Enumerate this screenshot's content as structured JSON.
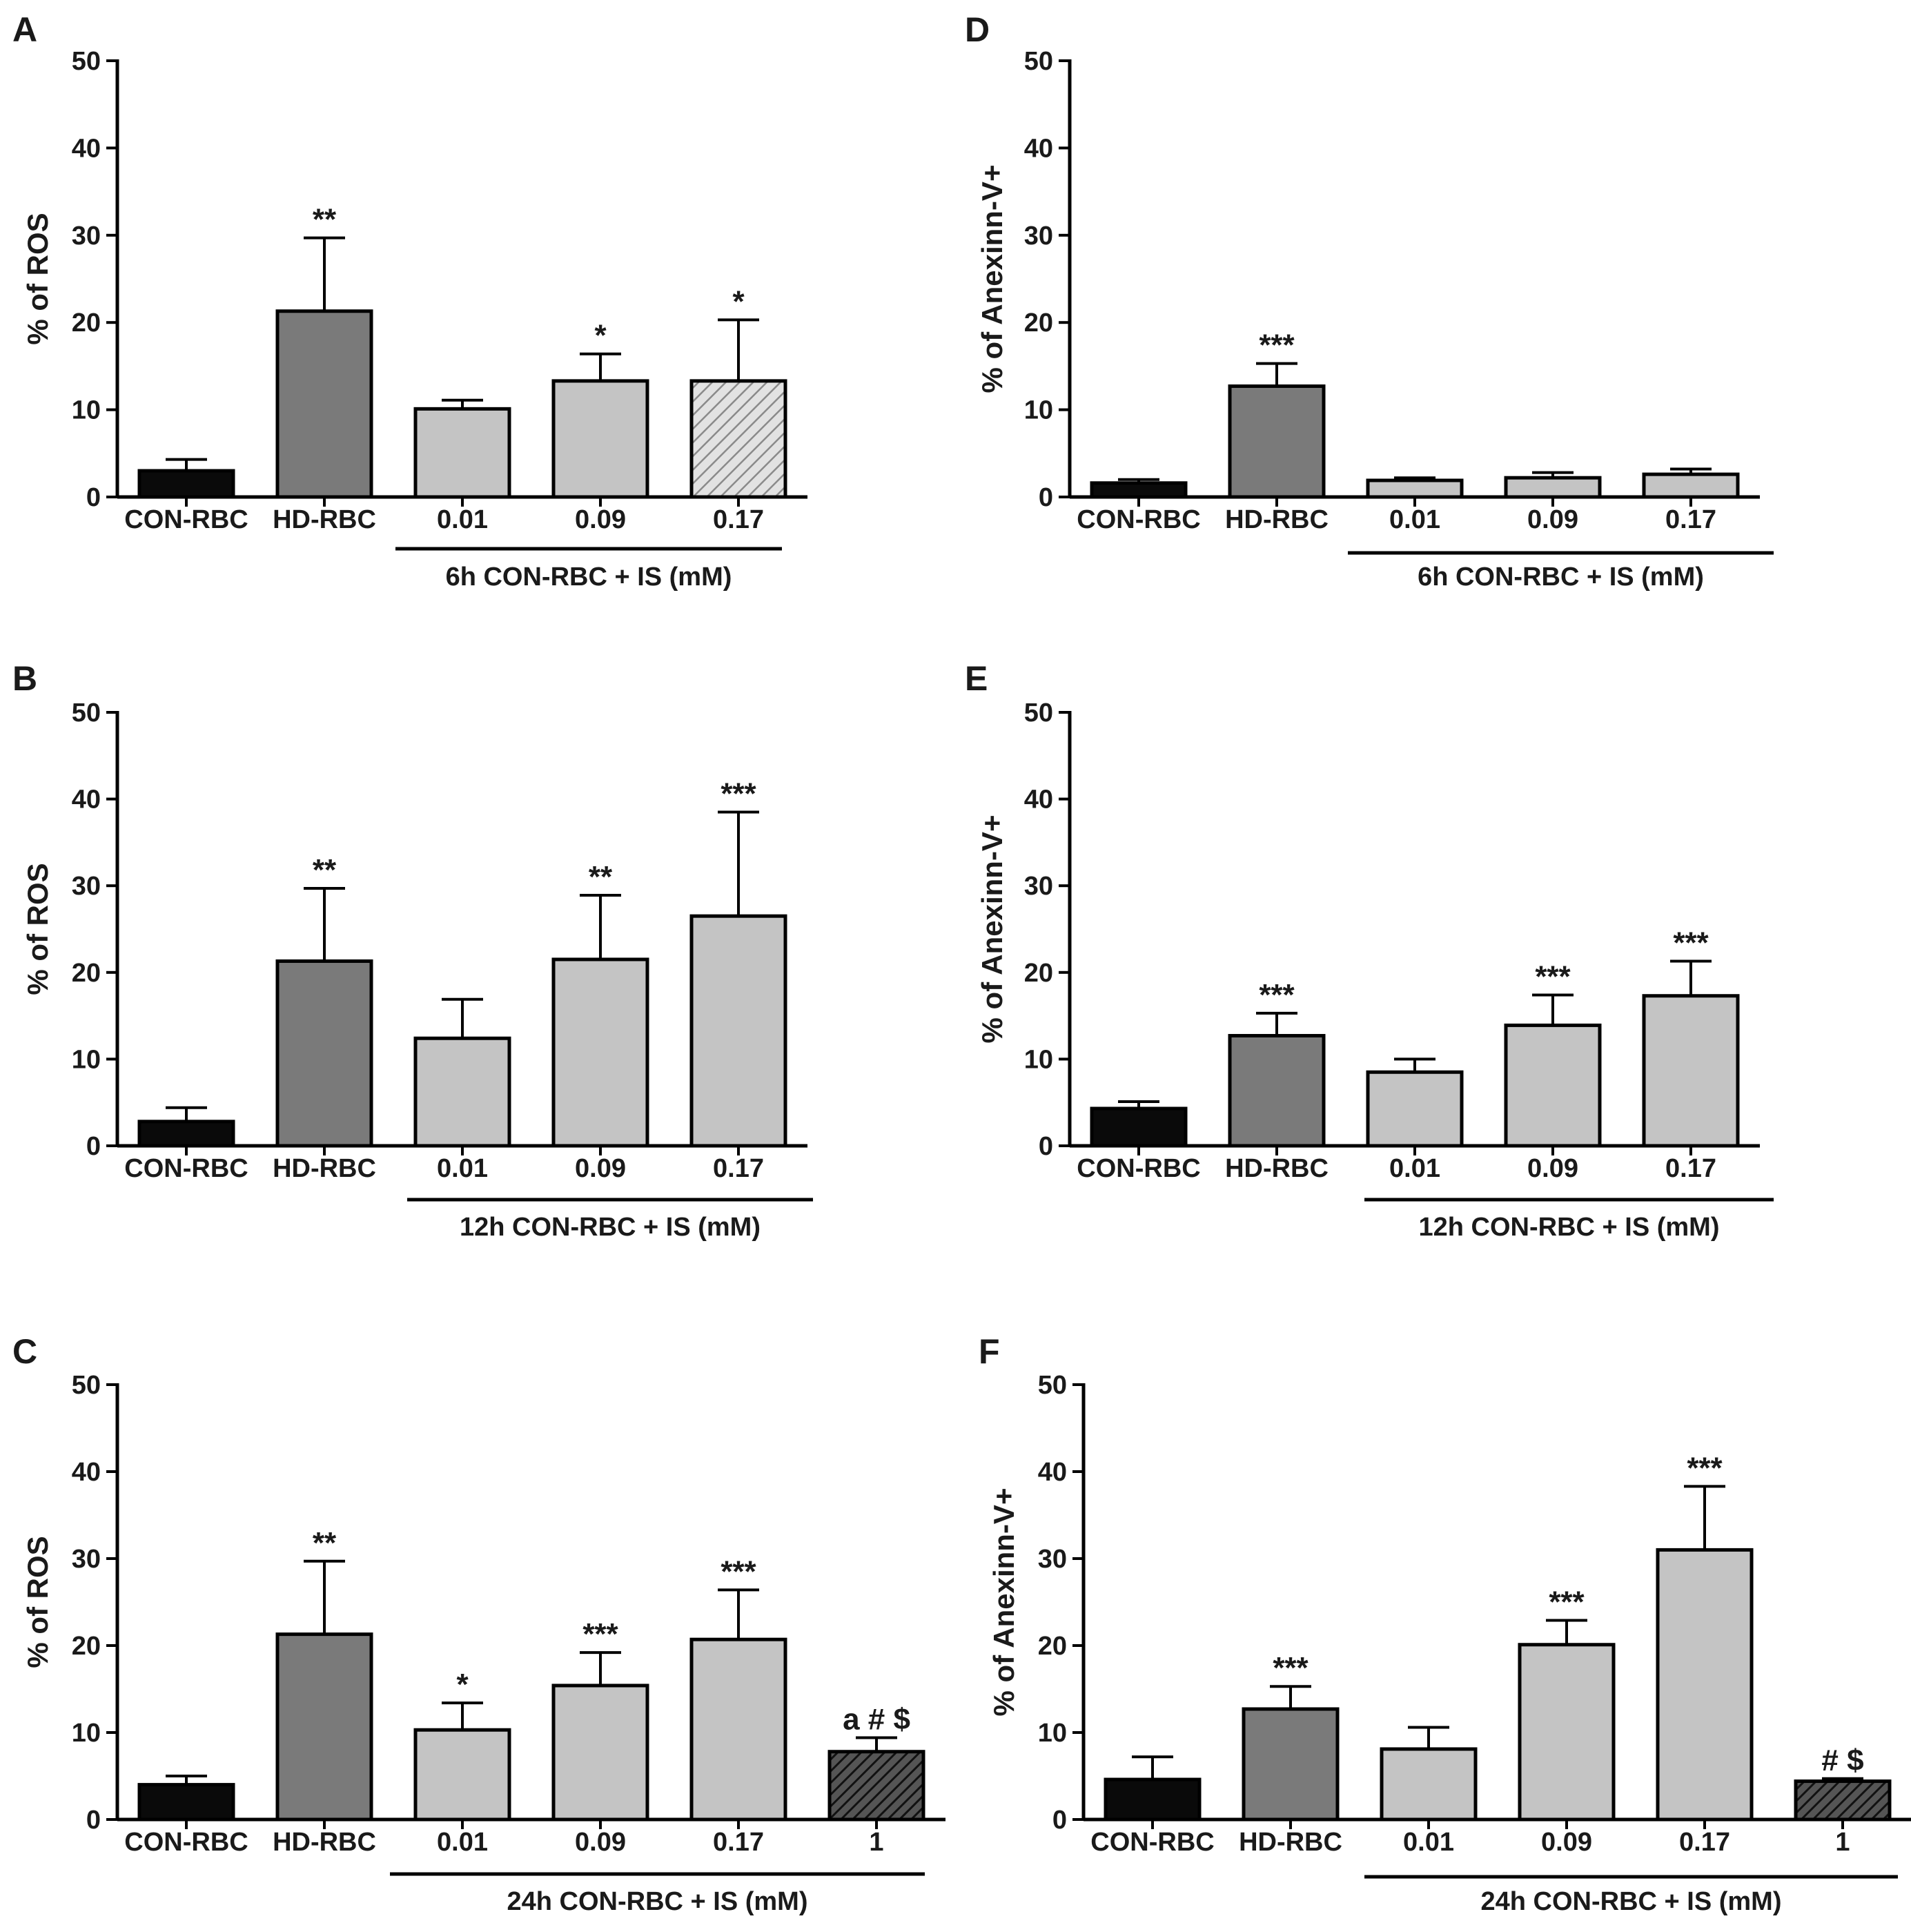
{
  "colors": {
    "con": "#0a0a0a",
    "hd": "#7a7a7a",
    "is": "#c4c4c4",
    "outline": "#000000",
    "hatch_light_bg": "#e2e2e2",
    "hatch_light_line": "#8a8a8a",
    "hatch_dark_bg": "#555555",
    "hatch_dark_line": "#111111"
  },
  "chart_data": [
    {
      "panel": "A",
      "type": "bar",
      "ylabel": "% of ROS",
      "ylim": [
        0,
        50
      ],
      "yticks": [
        0,
        10,
        20,
        30,
        40,
        50
      ],
      "categories": [
        "CON-RBC",
        "HD-RBC",
        "0.01",
        "0.09",
        "0.17"
      ],
      "values": [
        3,
        21.3,
        10.1,
        13.3,
        13.3
      ],
      "errors": [
        1.3,
        8.4,
        1.0,
        3.1,
        7.0
      ],
      "significance": [
        "",
        "**",
        "",
        "*",
        "*"
      ],
      "fills": [
        "con",
        "hd",
        "is",
        "is",
        "hatch_light"
      ],
      "group_label": "6h CON-RBC + IS (mM)",
      "group_start": 2
    },
    {
      "panel": "B",
      "type": "bar",
      "ylabel": "% of ROS",
      "ylim": [
        0,
        50
      ],
      "yticks": [
        0,
        10,
        20,
        30,
        40,
        50
      ],
      "categories": [
        "CON-RBC",
        "HD-RBC",
        "0.01",
        "0.09",
        "0.17"
      ],
      "values": [
        2.8,
        21.3,
        12.4,
        21.5,
        26.5
      ],
      "errors": [
        1.6,
        8.4,
        4.5,
        7.4,
        12.0
      ],
      "significance": [
        "",
        "**",
        "",
        "**",
        "***"
      ],
      "fills": [
        "con",
        "hd",
        "is",
        "is",
        "is"
      ],
      "group_label": "12h CON-RBC + IS (mM)",
      "group_start": 2
    },
    {
      "panel": "C",
      "type": "bar",
      "ylabel": "% of ROS",
      "ylim": [
        0,
        50
      ],
      "yticks": [
        0,
        10,
        20,
        30,
        40,
        50
      ],
      "categories": [
        "CON-RBC",
        "HD-RBC",
        "0.01",
        "0.09",
        "0.17",
        "1"
      ],
      "values": [
        4,
        21.3,
        10.3,
        15.4,
        20.7,
        7.8
      ],
      "errors": [
        1.0,
        8.4,
        3.1,
        3.8,
        5.7,
        1.6
      ],
      "significance": [
        "",
        "**",
        "*",
        "***",
        "***",
        "a # $"
      ],
      "fills": [
        "con",
        "hd",
        "is",
        "is",
        "is",
        "hatch_dark"
      ],
      "group_label": "24h CON-RBC + IS (mM)",
      "group_start": 2
    },
    {
      "panel": "D",
      "type": "bar",
      "ylabel": "% of Anexinn-V+",
      "ylim": [
        0,
        50
      ],
      "yticks": [
        0,
        10,
        20,
        30,
        40,
        50
      ],
      "categories": [
        "CON-RBC",
        "HD-RBC",
        "0.01",
        "0.09",
        "0.17"
      ],
      "values": [
        1.6,
        12.7,
        1.9,
        2.2,
        2.6
      ],
      "errors": [
        0.4,
        2.6,
        0.3,
        0.6,
        0.6
      ],
      "significance": [
        "",
        "***",
        "",
        "",
        ""
      ],
      "fills": [
        "con",
        "hd",
        "is",
        "is",
        "is"
      ],
      "group_label": "6h CON-RBC + IS (mM)",
      "group_start": 2
    },
    {
      "panel": "E",
      "type": "bar",
      "ylabel": "% of Anexinn-V+",
      "ylim": [
        0,
        50
      ],
      "yticks": [
        0,
        10,
        20,
        30,
        40,
        50
      ],
      "categories": [
        "CON-RBC",
        "HD-RBC",
        "0.01",
        "0.09",
        "0.17"
      ],
      "values": [
        4.3,
        12.7,
        8.5,
        13.9,
        17.3
      ],
      "errors": [
        0.8,
        2.6,
        1.5,
        3.5,
        4.0
      ],
      "significance": [
        "",
        "***",
        "",
        "***",
        "***"
      ],
      "fills": [
        "con",
        "hd",
        "is",
        "is",
        "is"
      ],
      "group_label": "12h CON-RBC + IS (mM)",
      "group_start": 2
    },
    {
      "panel": "F",
      "type": "bar",
      "ylabel": "% of Anexinn-V+",
      "ylim": [
        0,
        50
      ],
      "yticks": [
        0,
        10,
        20,
        30,
        40,
        50
      ],
      "categories": [
        "CON-RBC",
        "HD-RBC",
        "0.01",
        "0.09",
        "0.17",
        "1"
      ],
      "values": [
        4.6,
        12.7,
        8.1,
        20.1,
        31,
        4.4
      ],
      "errors": [
        2.6,
        2.6,
        2.5,
        2.8,
        7.3,
        0.3
      ],
      "significance": [
        "",
        "***",
        "",
        "***",
        "***",
        "# $"
      ],
      "fills": [
        "con",
        "hd",
        "is",
        "is",
        "is",
        "hatch_dark"
      ],
      "group_label": "24h CON-RBC + IS (mM)",
      "group_start": 2
    }
  ]
}
